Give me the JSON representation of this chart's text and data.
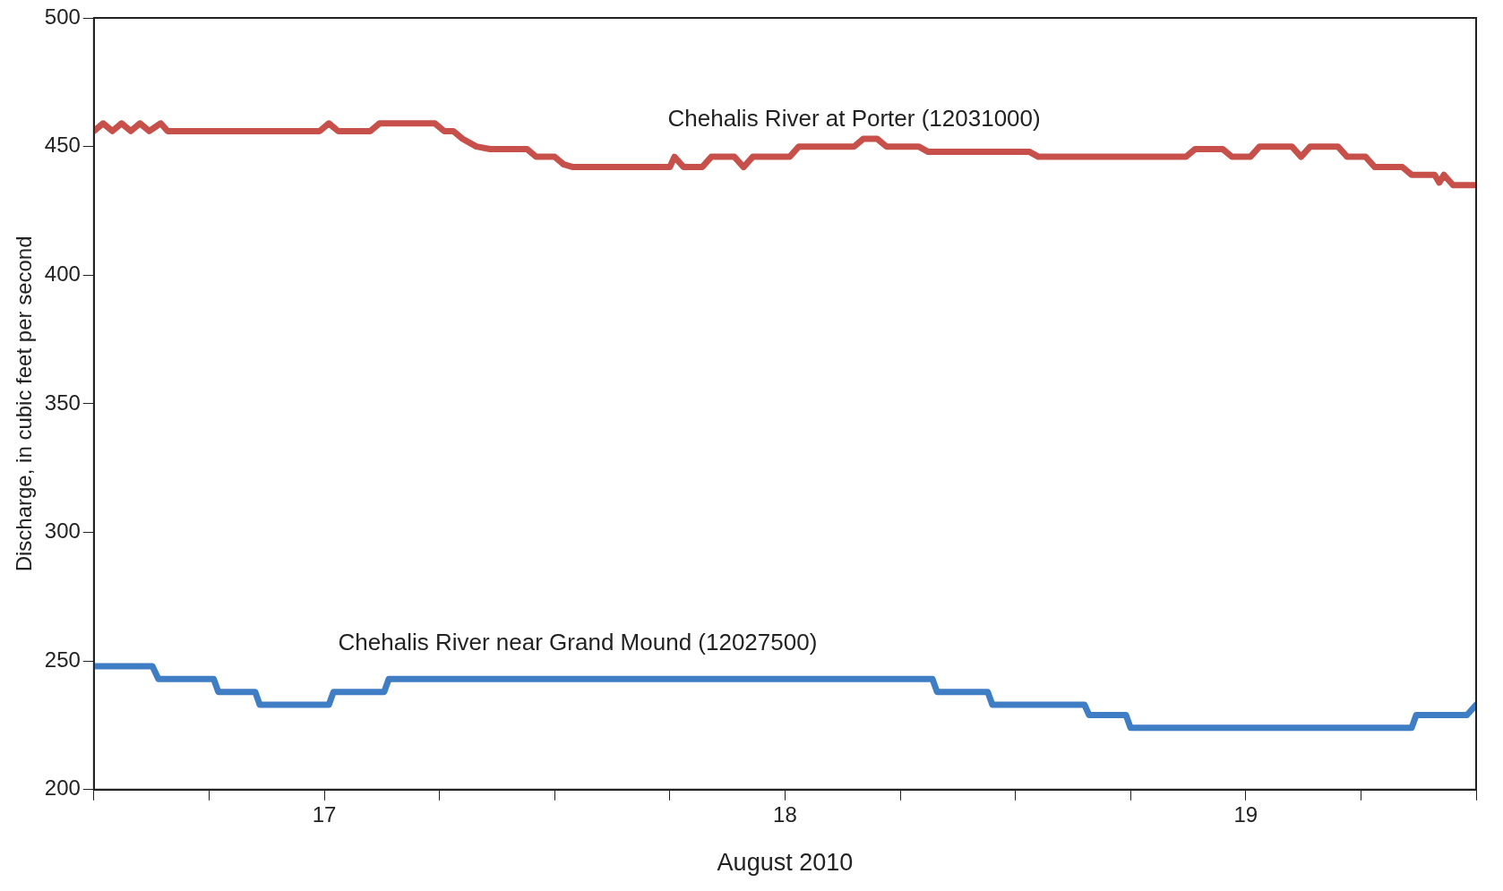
{
  "chart_data": {
    "type": "line",
    "xlabel": "August 2010",
    "ylabel": "Discharge, in cubic feet per second",
    "xlim": [
      16.5,
      19.5
    ],
    "ylim": [
      200,
      500
    ],
    "xticks": [
      {
        "value": 16.5,
        "label": null
      },
      {
        "value": 16.75,
        "label": null
      },
      17,
      {
        "value": 17.25,
        "label": null
      },
      {
        "value": 17.5,
        "label": null
      },
      {
        "value": 17.75,
        "label": null
      },
      18,
      {
        "value": 18.25,
        "label": null
      },
      {
        "value": 18.5,
        "label": null
      },
      {
        "value": 18.75,
        "label": null
      },
      19,
      {
        "value": 19.25,
        "label": null
      },
      {
        "value": 19.5,
        "label": null
      }
    ],
    "yticks": [
      200,
      250,
      300,
      350,
      400,
      450,
      500
    ],
    "grid": false,
    "legend": false,
    "marker": "none",
    "line_style": "solid",
    "series": [
      {
        "name": "Chehalis River at Porter (12031000)",
        "color": "#c8504b",
        "x": [
          16.5,
          16.52,
          16.54,
          16.56,
          16.58,
          16.6,
          16.62,
          16.645,
          16.66,
          16.99,
          17.01,
          17.03,
          17.1,
          17.12,
          17.14,
          17.24,
          17.26,
          17.28,
          17.3,
          17.33,
          17.36,
          17.44,
          17.46,
          17.5,
          17.52,
          17.54,
          17.75,
          17.76,
          17.78,
          17.82,
          17.84,
          17.89,
          17.91,
          17.93,
          18.01,
          18.03,
          18.15,
          18.17,
          18.2,
          18.22,
          18.29,
          18.31,
          18.53,
          18.55,
          18.87,
          18.89,
          18.95,
          18.97,
          19.01,
          19.03,
          19.1,
          19.12,
          19.14,
          19.2,
          19.22,
          19.26,
          19.28,
          19.34,
          19.36,
          19.41,
          19.42,
          19.43,
          19.45,
          19.5
        ],
        "values": [
          456,
          459,
          456,
          459,
          456,
          459,
          456,
          459,
          456,
          456,
          459,
          456,
          456,
          459,
          459,
          459,
          456,
          456,
          453,
          450,
          449,
          449,
          446,
          446,
          443,
          442,
          442,
          446,
          442,
          442,
          446,
          446,
          442,
          446,
          446,
          450,
          450,
          453,
          453,
          450,
          450,
          448,
          448,
          446,
          446,
          449,
          449,
          446,
          446,
          450,
          450,
          446,
          450,
          450,
          446,
          446,
          442,
          442,
          439,
          439,
          436,
          439,
          435,
          435
        ]
      },
      {
        "name": "Chehalis River near Grand Mound (12027500)",
        "color": "#3f7ec4",
        "x": [
          16.5,
          16.627,
          16.64,
          16.76,
          16.77,
          16.85,
          16.86,
          17.01,
          17.02,
          17.13,
          17.14,
          18.32,
          18.33,
          18.44,
          18.45,
          18.65,
          18.66,
          18.74,
          18.75,
          19.36,
          19.37,
          19.48,
          19.5
        ],
        "values": [
          248,
          248,
          243,
          243,
          238,
          238,
          233,
          233,
          238,
          238,
          243,
          243,
          238,
          238,
          233,
          233,
          229,
          229,
          224,
          224,
          229,
          229,
          233
        ]
      }
    ]
  }
}
